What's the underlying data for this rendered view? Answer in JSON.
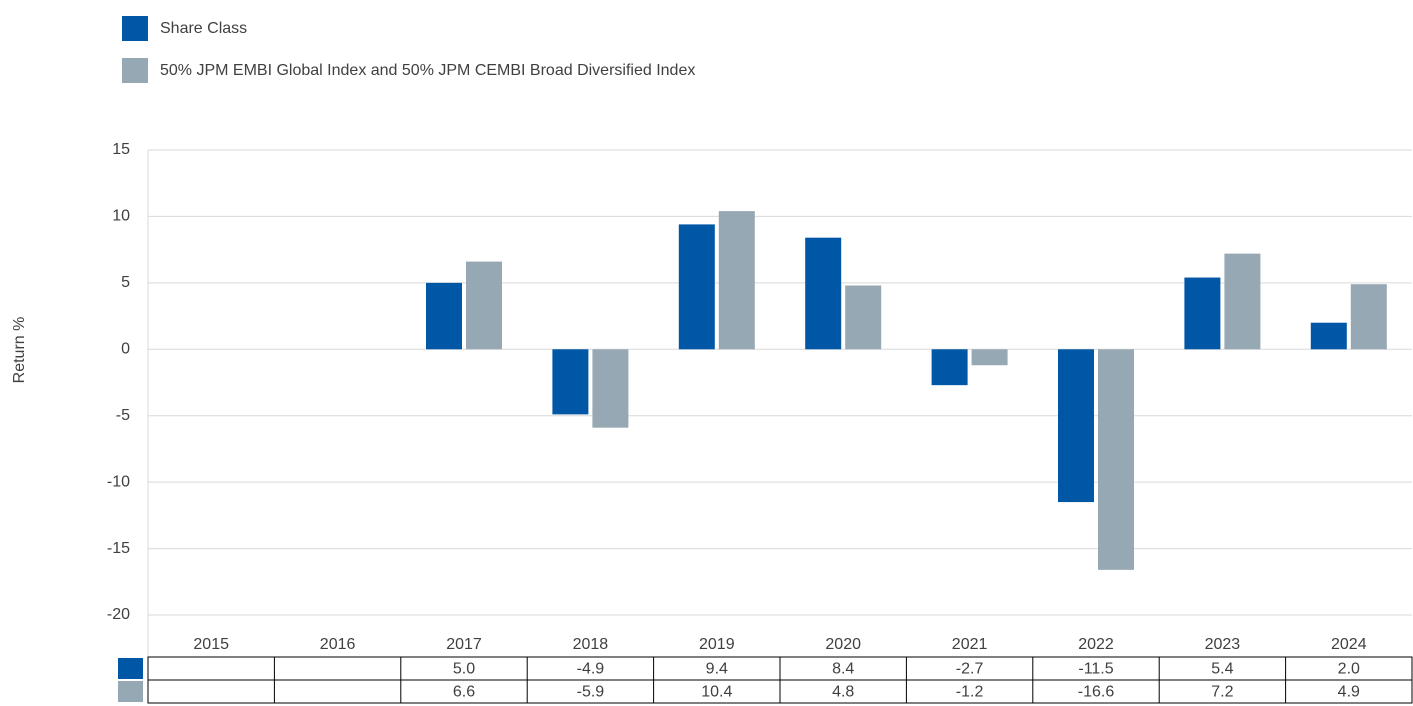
{
  "chart_data": {
    "type": "bar",
    "y_label": "Return %",
    "categories": [
      "2015",
      "2016",
      "2017",
      "2018",
      "2019",
      "2020",
      "2021",
      "2022",
      "2023",
      "2024"
    ],
    "series": [
      {
        "name": "Share Class",
        "color": "#0057a5",
        "values": [
          null,
          null,
          5.0,
          -4.9,
          9.4,
          8.4,
          -2.7,
          -11.5,
          5.4,
          2.0
        ],
        "value_labels": [
          null,
          null,
          "5.0",
          "-4.9",
          "9.4",
          "8.4",
          "-2.7",
          "-11.5",
          "5.4",
          "2.0"
        ]
      },
      {
        "name": "50% JPM EMBI Global Index and 50% JPM CEMBI Broad Diversified Index",
        "color": "#97a8b5",
        "values": [
          null,
          null,
          6.6,
          -5.9,
          10.4,
          4.8,
          -1.2,
          -16.6,
          7.2,
          4.9
        ],
        "value_labels": [
          null,
          null,
          "6.6",
          "-5.9",
          "10.4",
          "4.8",
          "-1.2",
          "-16.6",
          "7.2",
          "4.9"
        ]
      }
    ],
    "ylim": [
      -20,
      15
    ],
    "yticks": [
      -20,
      -15,
      -10,
      -5,
      0,
      5,
      10,
      15
    ],
    "grid": true,
    "legend": "top-left"
  }
}
